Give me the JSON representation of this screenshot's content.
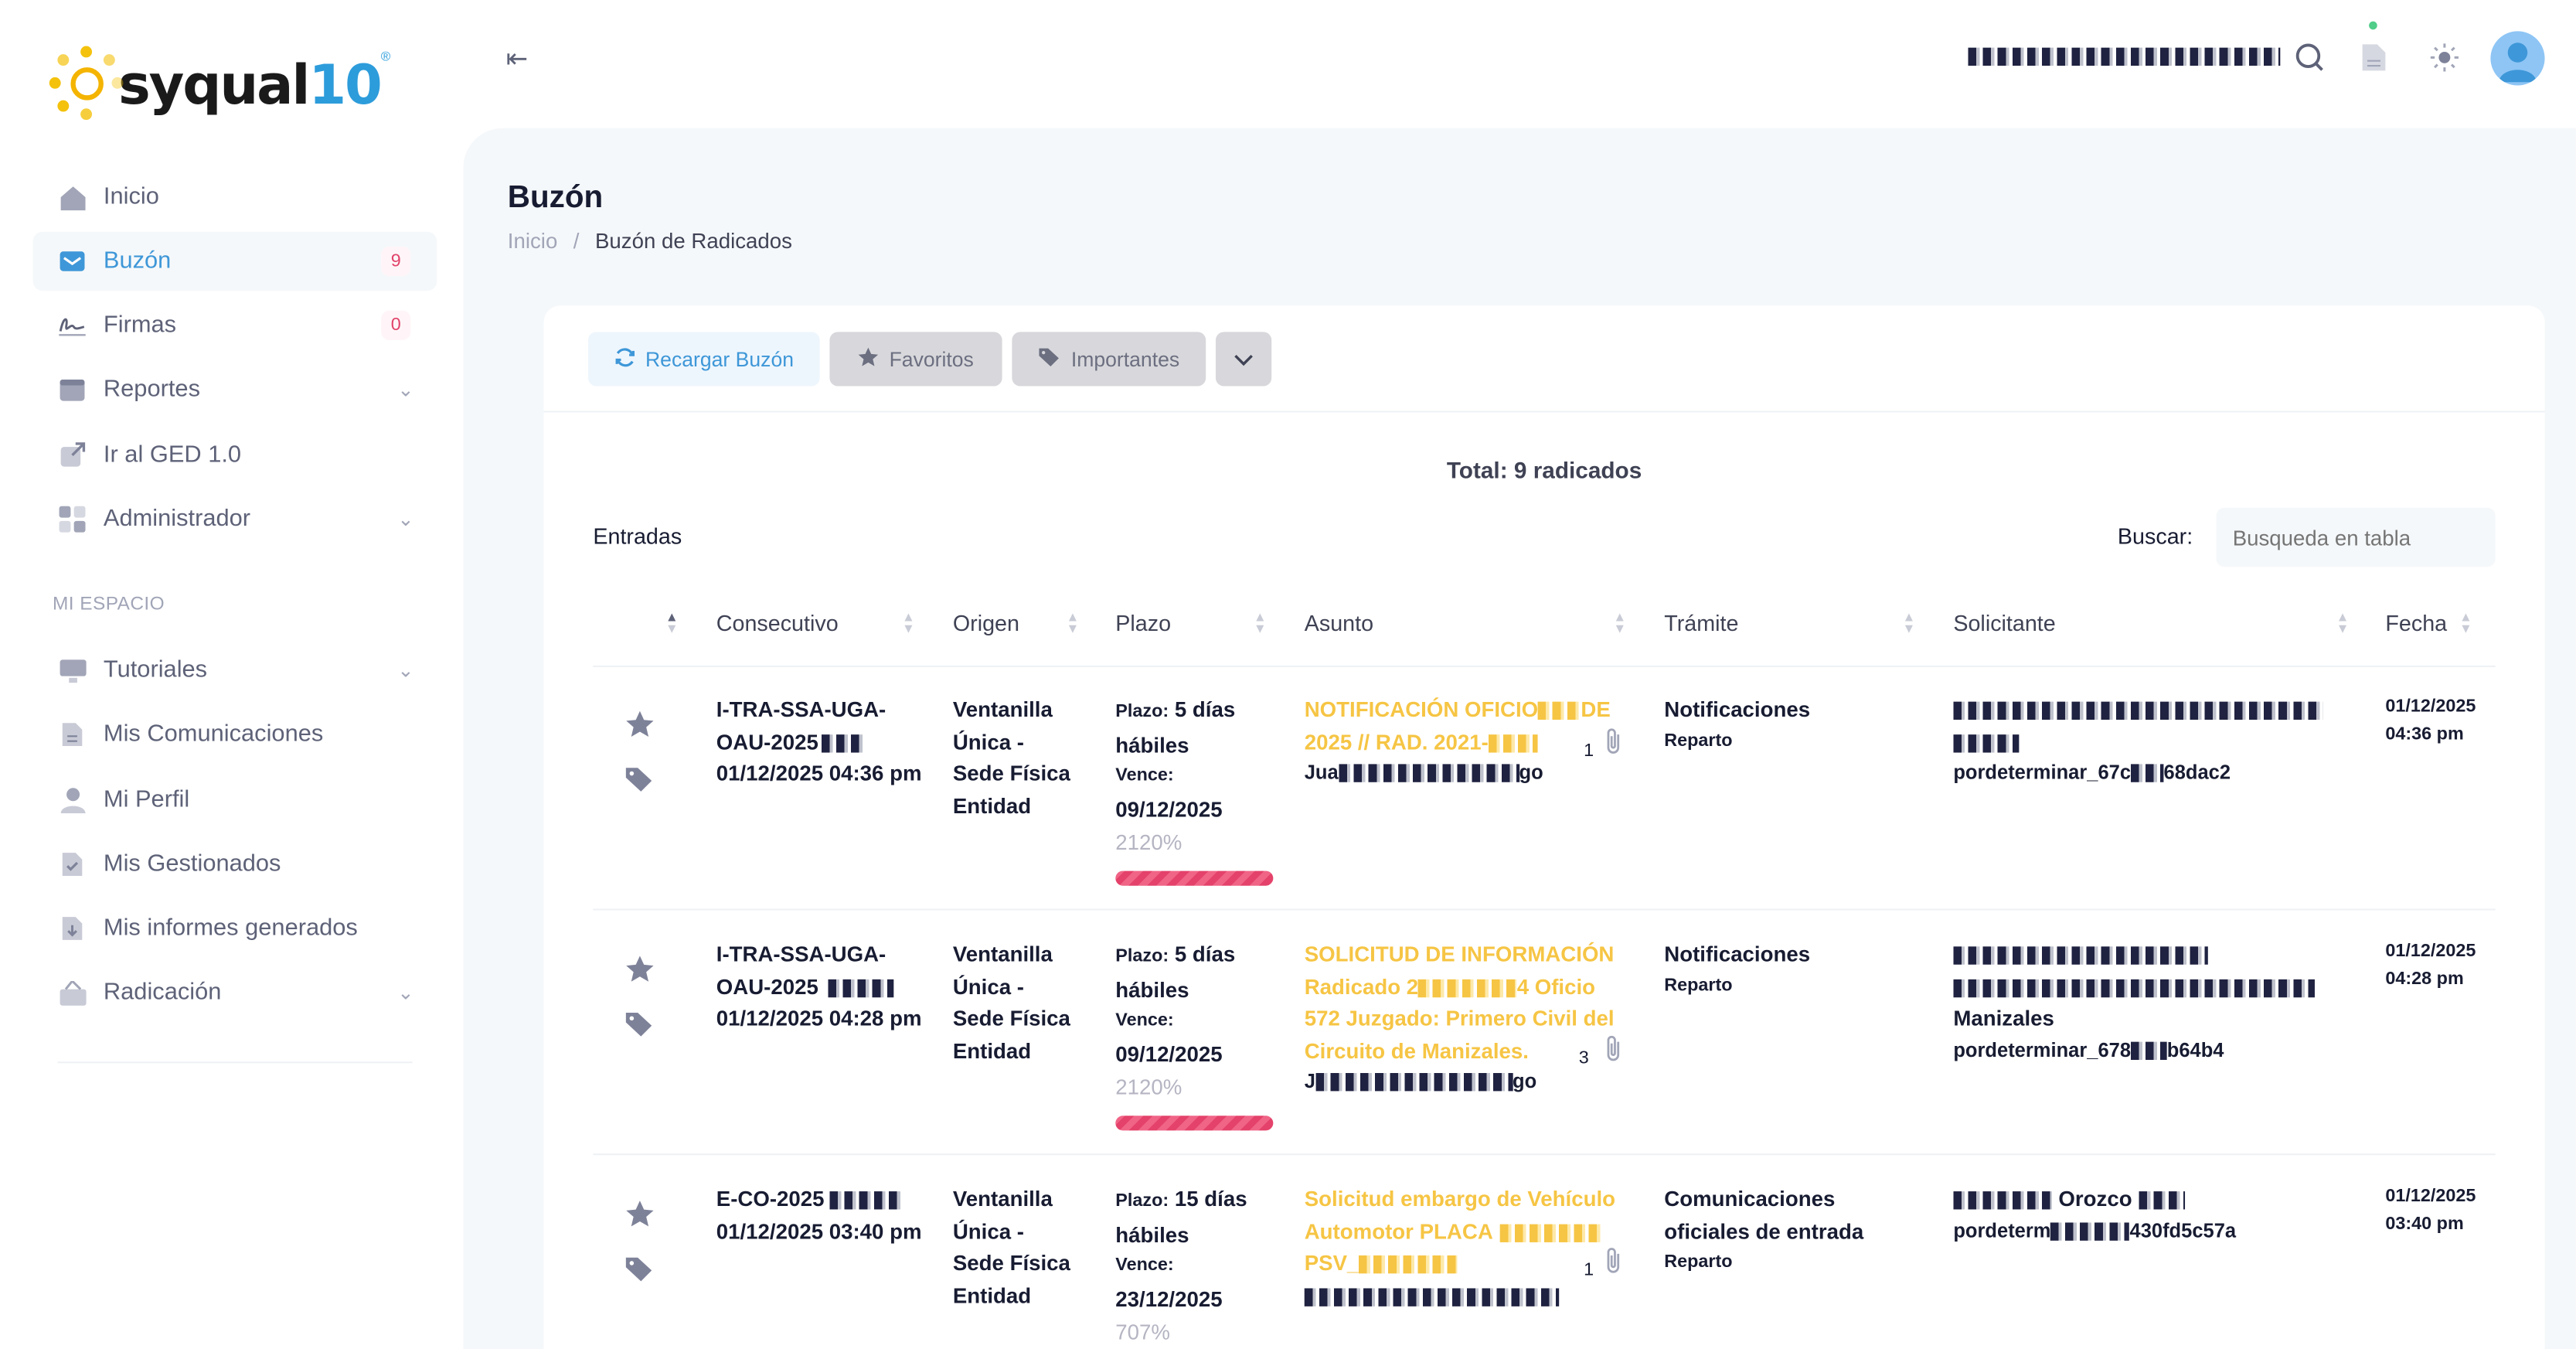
{
  "app": {
    "logo_text": "syqual",
    "logo_version": "10",
    "logo_mark": "®"
  },
  "sidebar": {
    "items": [
      {
        "label": "Inicio",
        "icon": "home-icon"
      },
      {
        "label": "Buzón",
        "icon": "inbox-icon",
        "badge": "9"
      },
      {
        "label": "Firmas",
        "icon": "signature-icon",
        "badge": "0"
      },
      {
        "label": "Reportes",
        "icon": "reports-icon"
      },
      {
        "label": "Ir al GED 1.0",
        "icon": "external-link-icon"
      },
      {
        "label": "Administrador",
        "icon": "grid-icon"
      }
    ],
    "section_label": "MI ESPACIO",
    "space_items": [
      {
        "label": "Tutoriales",
        "icon": "monitor-icon"
      },
      {
        "label": "Mis Comunicaciones",
        "icon": "document-icon"
      },
      {
        "label": "Mi Perfil",
        "icon": "user-icon"
      },
      {
        "label": "Mis Gestionados",
        "icon": "check-document-icon"
      },
      {
        "label": "Mis informes generados",
        "icon": "download-document-icon"
      },
      {
        "label": "Radicación",
        "icon": "filing-icon"
      }
    ]
  },
  "header": {
    "user_name_redacted": "████ ██ █ ████ █ ████ ."
  },
  "page": {
    "title": "Buzón",
    "breadcrumb_home": "Inicio",
    "breadcrumb_sep": "/",
    "breadcrumb_current": "Buzón de Radicados"
  },
  "toolbar": {
    "reload": "Recargar Buzón",
    "favorites": "Favoritos",
    "important": "Importantes"
  },
  "table": {
    "total": "Total: 9 radicados",
    "caption": "Entradas",
    "search_label": "Buscar:",
    "search_placeholder": "Busqueda en tabla",
    "headers": [
      "Consecutivo",
      "Origen",
      "Plazo",
      "Asunto",
      "Trámite",
      "Solicitante",
      "Fecha"
    ],
    "plazo_label": "Plazo:",
    "vence_label": "Vence:",
    "rows": [
      {
        "consecutivo_1": "I-TRA-SSA-UGA-",
        "consecutivo_2": "OAU-2025",
        "consecutivo_date": "01/12/2025 04:36 pm",
        "origen": [
          "Ventanilla",
          "Única -",
          "Sede Física",
          "Entidad"
        ],
        "plazo": "5 días",
        "plazo_2": "hábiles",
        "vence": "09/12/2025",
        "pct": "2120%",
        "asunto_1": "NOTIFICACIÓN OFICIO",
        "asunto_1b": "DE",
        "asunto_2": "2025 // RAD. 2021-",
        "asunto_user_a": "Jua",
        "asunto_user_b": "go",
        "attachments": "1",
        "tramite": "Notificaciones",
        "tramite_sub": "Reparto",
        "solicitante_code_a": "pordeterminar_67c",
        "solicitante_code_b": "68dac2",
        "fecha": "01/12/2025",
        "hora": "04:36 pm"
      },
      {
        "consecutivo_1": "I-TRA-SSA-UGA-",
        "consecutivo_2": "OAU-2025",
        "consecutivo_date": "01/12/2025 04:28 pm",
        "origen": [
          "Ventanilla",
          "Única -",
          "Sede Física",
          "Entidad"
        ],
        "plazo": "5 días",
        "plazo_2": "hábiles",
        "vence": "09/12/2025",
        "pct": "2120%",
        "asunto_1": "SOLICITUD DE INFORMACIÓN",
        "asunto_2a": "Radicado 2",
        "asunto_2b": "4 Oficio",
        "asunto_3": "572 Juzgado: Primero Civil del",
        "asunto_4": "Circuito de Manizales.",
        "asunto_user_a": "J",
        "asunto_user_b": "go",
        "attachments": "3",
        "tramite": "Notificaciones",
        "tramite_sub": "Reparto",
        "solicitante_city": "Manizales",
        "solicitante_code_a": "pordeterminar_678",
        "solicitante_code_b": "b64b4",
        "fecha": "01/12/2025",
        "hora": "04:28 pm"
      },
      {
        "consecutivo_1": "E-CO-2025",
        "consecutivo_date": "01/12/2025 03:40 pm",
        "origen": [
          "Ventanilla",
          "Única -",
          "Sede Física",
          "Entidad"
        ],
        "plazo": "15 días",
        "plazo_2": "hábiles",
        "vence": "23/12/2025",
        "pct": "707%",
        "asunto_1": "Solicitud embargo de Vehículo",
        "asunto_2": "Automotor PLACA",
        "asunto_3": "PSV_",
        "attachments": "1",
        "tramite": "Comunicaciones",
        "tramite_2": "oficiales de entrada",
        "tramite_sub": "Reparto",
        "solicitante_name": "Orozco",
        "solicitante_code_a": "pordeterm",
        "solicitante_code_b": "430fd5c57a",
        "fecha": "01/12/2025",
        "hora": "03:40 pm"
      }
    ]
  },
  "colors": {
    "accent": "#3e97d8",
    "asunto": "#f6c544",
    "danger": "#e4426a",
    "muted": "#a1a5b7"
  }
}
